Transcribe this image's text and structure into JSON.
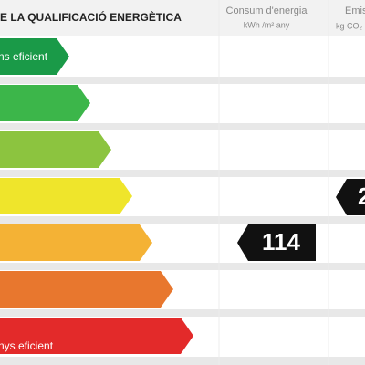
{
  "header": {
    "title": "E LA QUALIFICACIÓ ENERGÈTICA",
    "columns": [
      {
        "title": "Consum d'energia",
        "unit": "kWh /m² any"
      },
      {
        "title": "Emis",
        "unit": "kg CO₂"
      }
    ]
  },
  "scale": {
    "top_label": "ns eficient",
    "bottom_label": "nys eficient"
  },
  "indicators": [
    {
      "value": 114
    },
    {
      "value": 2
    }
  ]
}
